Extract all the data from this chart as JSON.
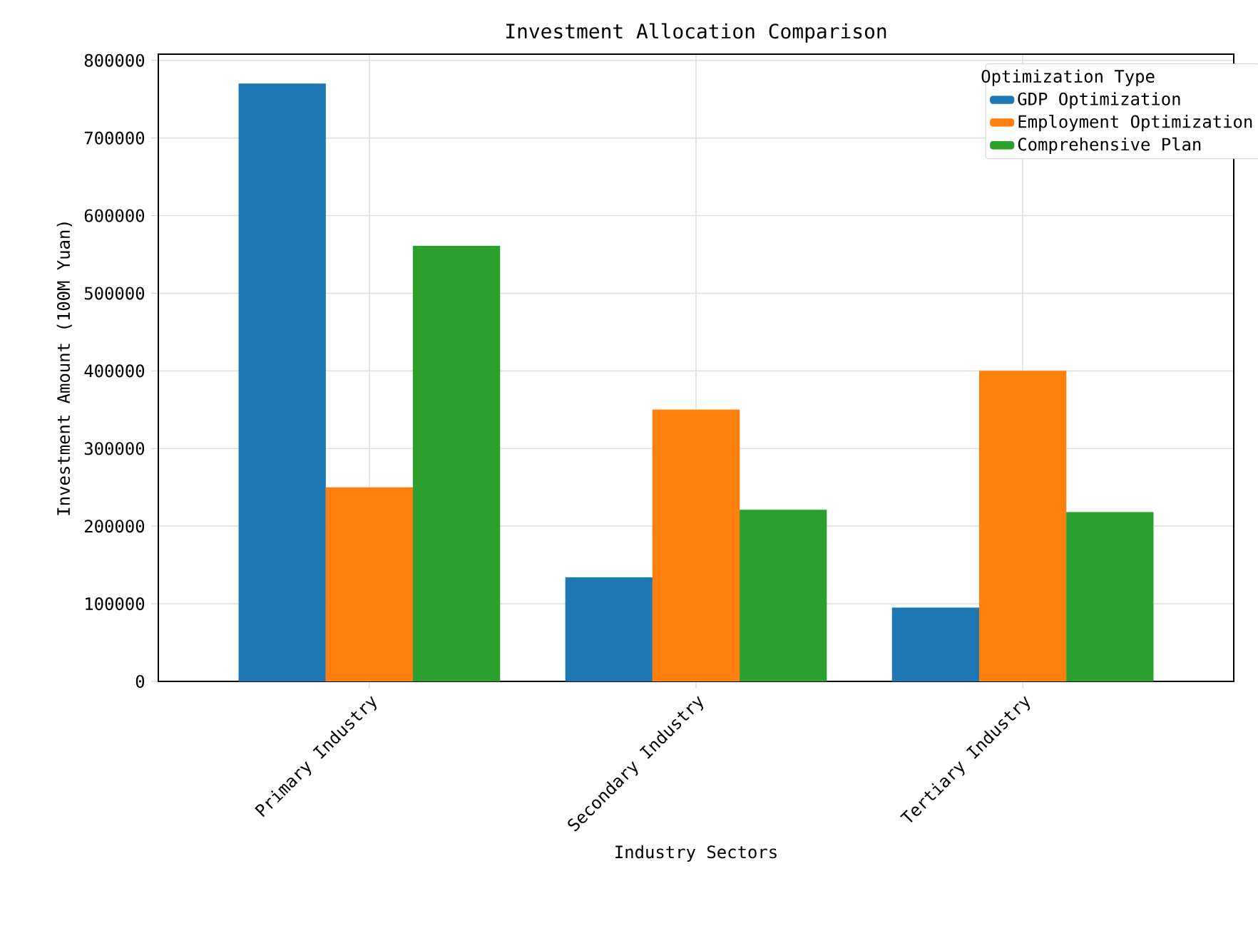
{
  "chart_data": {
    "type": "bar",
    "title": "Investment Allocation Comparison",
    "xlabel": "Industry Sectors",
    "ylabel": "Investment Amount (100M Yuan)",
    "legend_title": "Optimization Type",
    "categories": [
      "Primary Industry",
      "Secondary Industry",
      "Tertiary Industry"
    ],
    "series": [
      {
        "name": "GDP Optimization",
        "color": "#1f77b4",
        "values": [
          770000,
          134000,
          95000
        ]
      },
      {
        "name": "Employment Optimization",
        "color": "#ff7f0e",
        "values": [
          250000,
          350000,
          400000
        ]
      },
      {
        "name": "Comprehensive Plan",
        "color": "#2ca02c",
        "values": [
          561000,
          221000,
          218000
        ]
      }
    ],
    "ylim": [
      0,
      808000
    ],
    "yticks": [
      0,
      100000,
      200000,
      300000,
      400000,
      500000,
      600000,
      700000,
      800000
    ],
    "grid": true,
    "legend": "top right"
  }
}
